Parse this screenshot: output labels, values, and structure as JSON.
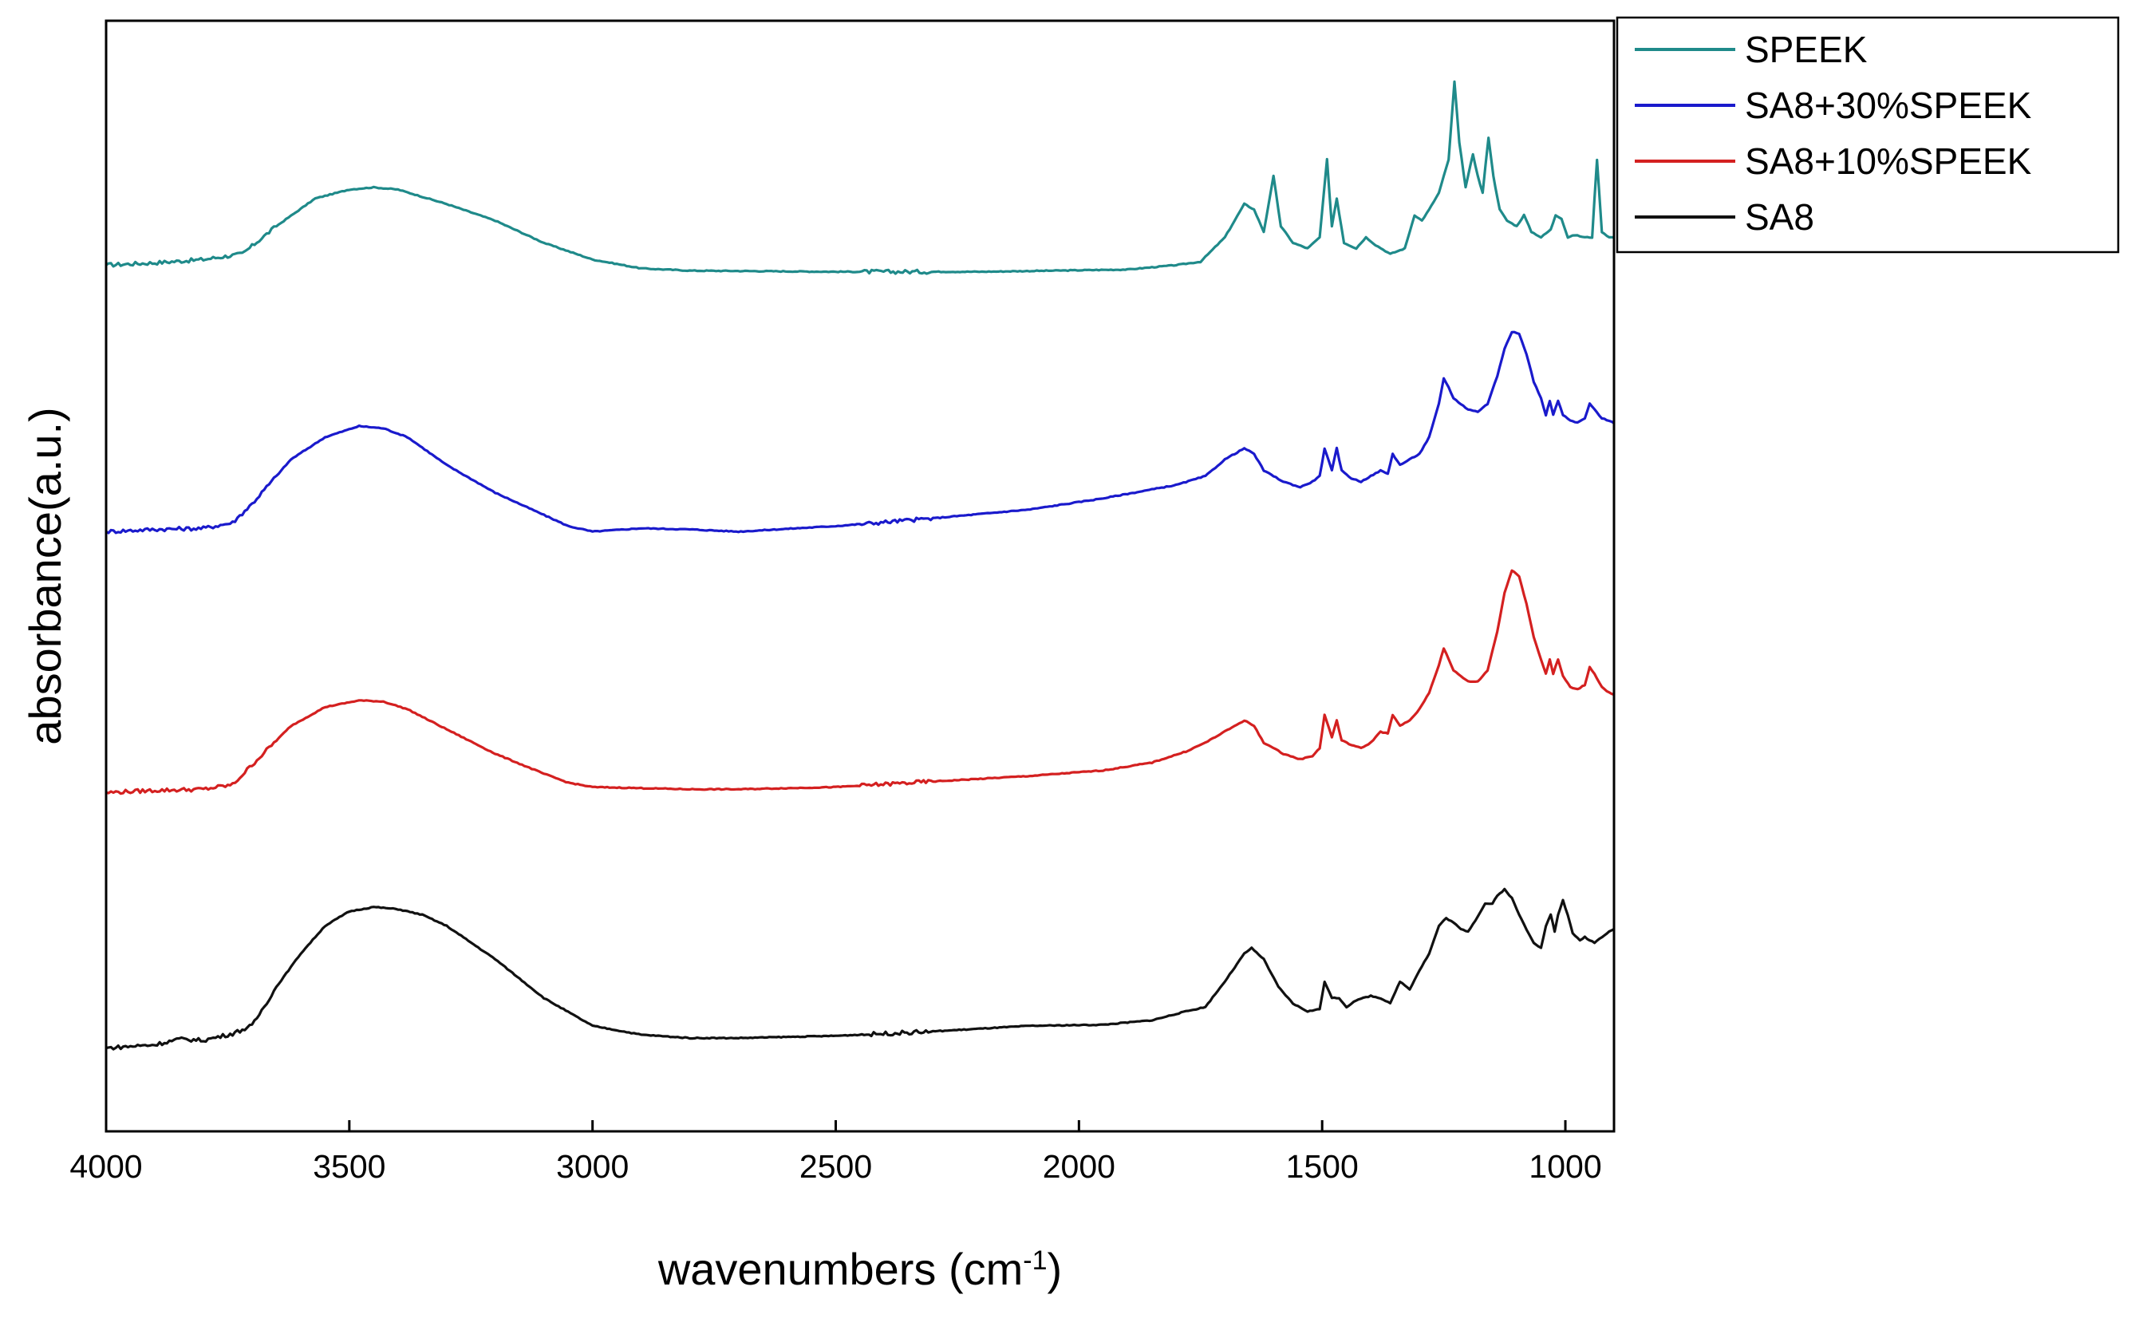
{
  "chart_data": {
    "type": "line",
    "title": "",
    "xlabel": "wavenumbers (cm",
    "xlabel_sup": "-1",
    "xlabel_close": ")",
    "ylabel": "absorbance(a.u.)",
    "xlim": [
      4000,
      900
    ],
    "x_reversed": true,
    "ylim": [
      0,
      10
    ],
    "y_ticks_shown": false,
    "x_ticks": [
      4000,
      3500,
      3000,
      2500,
      2000,
      1500,
      1000
    ],
    "x_tick_labels": [
      "4000",
      "3500",
      "3000",
      "2500",
      "2000",
      "1500",
      "1000"
    ],
    "legend_position": "outside top-right",
    "series": [
      {
        "name": "SPEEK",
        "color": "#1f8a8a",
        "points": [
          [
            4000,
            7.8
          ],
          [
            3900,
            7.82
          ],
          [
            3800,
            7.85
          ],
          [
            3720,
            7.9
          ],
          [
            3650,
            8.15
          ],
          [
            3570,
            8.4
          ],
          [
            3500,
            8.48
          ],
          [
            3450,
            8.5
          ],
          [
            3400,
            8.48
          ],
          [
            3300,
            8.35
          ],
          [
            3200,
            8.2
          ],
          [
            3100,
            8.0
          ],
          [
            3000,
            7.85
          ],
          [
            2900,
            7.77
          ],
          [
            2800,
            7.75
          ],
          [
            2500,
            7.74
          ],
          [
            2200,
            7.74
          ],
          [
            1900,
            7.76
          ],
          [
            1800,
            7.8
          ],
          [
            1750,
            7.83
          ],
          [
            1700,
            8.05
          ],
          [
            1660,
            8.35
          ],
          [
            1640,
            8.3
          ],
          [
            1620,
            8.1
          ],
          [
            1600,
            8.6
          ],
          [
            1585,
            8.15
          ],
          [
            1560,
            8.0
          ],
          [
            1530,
            7.95
          ],
          [
            1505,
            8.05
          ],
          [
            1490,
            8.75
          ],
          [
            1480,
            8.15
          ],
          [
            1470,
            8.4
          ],
          [
            1455,
            8.0
          ],
          [
            1430,
            7.95
          ],
          [
            1410,
            8.05
          ],
          [
            1390,
            7.98
          ],
          [
            1360,
            7.9
          ],
          [
            1330,
            7.95
          ],
          [
            1310,
            8.25
          ],
          [
            1295,
            8.2
          ],
          [
            1280,
            8.3
          ],
          [
            1260,
            8.45
          ],
          [
            1240,
            8.75
          ],
          [
            1228,
            9.45
          ],
          [
            1218,
            8.9
          ],
          [
            1205,
            8.5
          ],
          [
            1190,
            8.8
          ],
          [
            1180,
            8.6
          ],
          [
            1170,
            8.45
          ],
          [
            1158,
            8.95
          ],
          [
            1148,
            8.6
          ],
          [
            1135,
            8.3
          ],
          [
            1120,
            8.2
          ],
          [
            1100,
            8.15
          ],
          [
            1085,
            8.25
          ],
          [
            1070,
            8.1
          ],
          [
            1050,
            8.05
          ],
          [
            1030,
            8.12
          ],
          [
            1020,
            8.25
          ],
          [
            1008,
            8.22
          ],
          [
            995,
            8.05
          ],
          [
            980,
            8.07
          ],
          [
            960,
            8.05
          ],
          [
            945,
            8.05
          ],
          [
            935,
            8.75
          ],
          [
            925,
            8.1
          ],
          [
            910,
            8.05
          ],
          [
            900,
            8.05
          ]
        ]
      },
      {
        "name": "SA8+30%SPEEK",
        "color": "#1a1acc",
        "points": [
          [
            4000,
            5.4
          ],
          [
            3900,
            5.42
          ],
          [
            3800,
            5.43
          ],
          [
            3740,
            5.48
          ],
          [
            3700,
            5.65
          ],
          [
            3620,
            6.05
          ],
          [
            3550,
            6.25
          ],
          [
            3480,
            6.35
          ],
          [
            3430,
            6.33
          ],
          [
            3380,
            6.25
          ],
          [
            3300,
            6.0
          ],
          [
            3200,
            5.75
          ],
          [
            3100,
            5.55
          ],
          [
            3050,
            5.45
          ],
          [
            3000,
            5.4
          ],
          [
            2900,
            5.43
          ],
          [
            2800,
            5.42
          ],
          [
            2700,
            5.4
          ],
          [
            2500,
            5.45
          ],
          [
            2300,
            5.52
          ],
          [
            2100,
            5.6
          ],
          [
            1950,
            5.7
          ],
          [
            1800,
            5.82
          ],
          [
            1740,
            5.9
          ],
          [
            1700,
            6.05
          ],
          [
            1660,
            6.15
          ],
          [
            1640,
            6.1
          ],
          [
            1620,
            5.95
          ],
          [
            1580,
            5.85
          ],
          [
            1545,
            5.8
          ],
          [
            1520,
            5.85
          ],
          [
            1505,
            5.9
          ],
          [
            1495,
            6.15
          ],
          [
            1480,
            5.95
          ],
          [
            1470,
            6.15
          ],
          [
            1460,
            5.95
          ],
          [
            1440,
            5.88
          ],
          [
            1420,
            5.85
          ],
          [
            1400,
            5.9
          ],
          [
            1380,
            5.95
          ],
          [
            1365,
            5.92
          ],
          [
            1355,
            6.1
          ],
          [
            1340,
            6.0
          ],
          [
            1320,
            6.05
          ],
          [
            1300,
            6.1
          ],
          [
            1280,
            6.25
          ],
          [
            1260,
            6.55
          ],
          [
            1250,
            6.78
          ],
          [
            1240,
            6.7
          ],
          [
            1230,
            6.6
          ],
          [
            1215,
            6.55
          ],
          [
            1200,
            6.5
          ],
          [
            1180,
            6.48
          ],
          [
            1160,
            6.55
          ],
          [
            1140,
            6.8
          ],
          [
            1125,
            7.05
          ],
          [
            1110,
            7.2
          ],
          [
            1095,
            7.18
          ],
          [
            1080,
            7.0
          ],
          [
            1065,
            6.75
          ],
          [
            1050,
            6.6
          ],
          [
            1040,
            6.45
          ],
          [
            1032,
            6.58
          ],
          [
            1025,
            6.45
          ],
          [
            1015,
            6.58
          ],
          [
            1005,
            6.45
          ],
          [
            990,
            6.4
          ],
          [
            975,
            6.38
          ],
          [
            960,
            6.42
          ],
          [
            950,
            6.55
          ],
          [
            940,
            6.5
          ],
          [
            925,
            6.42
          ],
          [
            910,
            6.4
          ],
          [
            900,
            6.38
          ]
        ]
      },
      {
        "name": "SA8+10%SPEEK",
        "color": "#d42020",
        "points": [
          [
            4000,
            3.05
          ],
          [
            3900,
            3.07
          ],
          [
            3800,
            3.08
          ],
          [
            3740,
            3.12
          ],
          [
            3700,
            3.3
          ],
          [
            3620,
            3.65
          ],
          [
            3550,
            3.82
          ],
          [
            3480,
            3.88
          ],
          [
            3430,
            3.87
          ],
          [
            3380,
            3.8
          ],
          [
            3300,
            3.62
          ],
          [
            3200,
            3.4
          ],
          [
            3100,
            3.22
          ],
          [
            3050,
            3.14
          ],
          [
            3000,
            3.1
          ],
          [
            2900,
            3.09
          ],
          [
            2800,
            3.08
          ],
          [
            2700,
            3.08
          ],
          [
            2500,
            3.1
          ],
          [
            2300,
            3.15
          ],
          [
            2100,
            3.2
          ],
          [
            1950,
            3.25
          ],
          [
            1850,
            3.32
          ],
          [
            1780,
            3.42
          ],
          [
            1740,
            3.5
          ],
          [
            1700,
            3.6
          ],
          [
            1660,
            3.7
          ],
          [
            1640,
            3.65
          ],
          [
            1620,
            3.5
          ],
          [
            1580,
            3.4
          ],
          [
            1545,
            3.35
          ],
          [
            1520,
            3.38
          ],
          [
            1505,
            3.45
          ],
          [
            1495,
            3.75
          ],
          [
            1480,
            3.55
          ],
          [
            1470,
            3.7
          ],
          [
            1460,
            3.52
          ],
          [
            1440,
            3.48
          ],
          [
            1420,
            3.45
          ],
          [
            1400,
            3.5
          ],
          [
            1380,
            3.6
          ],
          [
            1365,
            3.58
          ],
          [
            1355,
            3.75
          ],
          [
            1340,
            3.65
          ],
          [
            1320,
            3.7
          ],
          [
            1300,
            3.8
          ],
          [
            1280,
            3.95
          ],
          [
            1260,
            4.2
          ],
          [
            1250,
            4.35
          ],
          [
            1240,
            4.25
          ],
          [
            1230,
            4.15
          ],
          [
            1215,
            4.1
          ],
          [
            1200,
            4.05
          ],
          [
            1180,
            4.05
          ],
          [
            1160,
            4.15
          ],
          [
            1140,
            4.5
          ],
          [
            1125,
            4.85
          ],
          [
            1110,
            5.05
          ],
          [
            1095,
            5.0
          ],
          [
            1080,
            4.75
          ],
          [
            1065,
            4.45
          ],
          [
            1050,
            4.25
          ],
          [
            1040,
            4.12
          ],
          [
            1032,
            4.25
          ],
          [
            1025,
            4.12
          ],
          [
            1015,
            4.25
          ],
          [
            1005,
            4.1
          ],
          [
            990,
            4.0
          ],
          [
            975,
            3.98
          ],
          [
            960,
            4.02
          ],
          [
            950,
            4.18
          ],
          [
            940,
            4.12
          ],
          [
            925,
            4.0
          ],
          [
            910,
            3.95
          ],
          [
            900,
            3.93
          ]
        ]
      },
      {
        "name": "SA8",
        "color": "#111111",
        "points": [
          [
            4000,
            0.75
          ],
          [
            3900,
            0.78
          ],
          [
            3850,
            0.83
          ],
          [
            3800,
            0.82
          ],
          [
            3740,
            0.88
          ],
          [
            3700,
            0.95
          ],
          [
            3650,
            1.3
          ],
          [
            3600,
            1.6
          ],
          [
            3550,
            1.85
          ],
          [
            3500,
            1.98
          ],
          [
            3450,
            2.02
          ],
          [
            3400,
            2.0
          ],
          [
            3350,
            1.95
          ],
          [
            3300,
            1.85
          ],
          [
            3200,
            1.55
          ],
          [
            3100,
            1.2
          ],
          [
            3000,
            0.95
          ],
          [
            2900,
            0.87
          ],
          [
            2800,
            0.84
          ],
          [
            2700,
            0.84
          ],
          [
            2500,
            0.86
          ],
          [
            2300,
            0.9
          ],
          [
            2100,
            0.95
          ],
          [
            1950,
            0.96
          ],
          [
            1850,
            1.0
          ],
          [
            1780,
            1.08
          ],
          [
            1740,
            1.12
          ],
          [
            1700,
            1.35
          ],
          [
            1660,
            1.6
          ],
          [
            1645,
            1.65
          ],
          [
            1620,
            1.55
          ],
          [
            1590,
            1.3
          ],
          [
            1560,
            1.15
          ],
          [
            1530,
            1.08
          ],
          [
            1505,
            1.1
          ],
          [
            1495,
            1.35
          ],
          [
            1480,
            1.2
          ],
          [
            1465,
            1.2
          ],
          [
            1450,
            1.12
          ],
          [
            1430,
            1.18
          ],
          [
            1400,
            1.22
          ],
          [
            1380,
            1.2
          ],
          [
            1360,
            1.15
          ],
          [
            1340,
            1.35
          ],
          [
            1320,
            1.28
          ],
          [
            1300,
            1.45
          ],
          [
            1280,
            1.6
          ],
          [
            1260,
            1.85
          ],
          [
            1245,
            1.92
          ],
          [
            1230,
            1.88
          ],
          [
            1215,
            1.82
          ],
          [
            1200,
            1.8
          ],
          [
            1185,
            1.9
          ],
          [
            1165,
            2.05
          ],
          [
            1150,
            2.05
          ],
          [
            1140,
            2.12
          ],
          [
            1125,
            2.18
          ],
          [
            1110,
            2.1
          ],
          [
            1095,
            1.95
          ],
          [
            1080,
            1.82
          ],
          [
            1065,
            1.7
          ],
          [
            1050,
            1.65
          ],
          [
            1040,
            1.85
          ],
          [
            1030,
            1.95
          ],
          [
            1022,
            1.8
          ],
          [
            1015,
            1.95
          ],
          [
            1005,
            2.08
          ],
          [
            995,
            1.95
          ],
          [
            985,
            1.78
          ],
          [
            970,
            1.72
          ],
          [
            960,
            1.75
          ],
          [
            950,
            1.72
          ],
          [
            940,
            1.7
          ],
          [
            925,
            1.75
          ],
          [
            910,
            1.8
          ],
          [
            900,
            1.82
          ]
        ]
      }
    ]
  }
}
